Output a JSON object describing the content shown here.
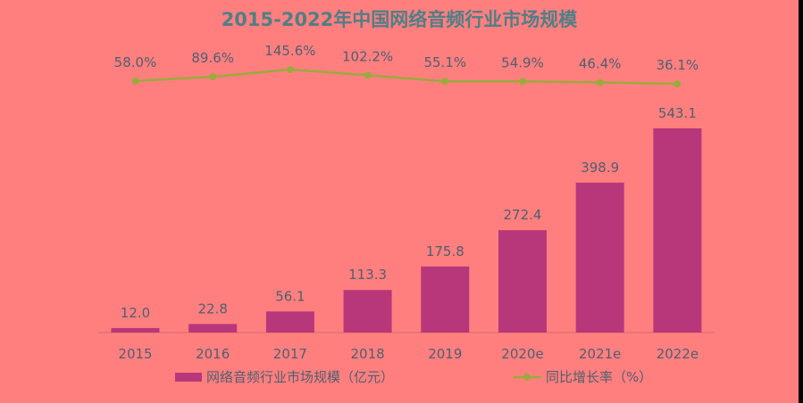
{
  "chart_data": {
    "type": "bar",
    "title": "2015-2022年中国网络音频行业市场规模",
    "categories": [
      "2015",
      "2016",
      "2017",
      "2018",
      "2019",
      "2020e",
      "2021e",
      "2022e"
    ],
    "series": [
      {
        "name": "网络音频行业市场规模（亿元）",
        "type": "bar",
        "values": [
          12.0,
          22.8,
          56.1,
          113.3,
          175.8,
          272.4,
          398.9,
          543.1
        ],
        "labels": [
          "12.0",
          "22.8",
          "56.1",
          "113.3",
          "175.8",
          "272.4",
          "398.9",
          "543.1"
        ],
        "axis": "left"
      },
      {
        "name": "同比增长率（%）",
        "type": "line",
        "values": [
          58.0,
          89.6,
          145.6,
          102.2,
          55.1,
          54.9,
          46.4,
          36.1
        ],
        "labels": [
          "58.0%",
          "89.6%",
          "145.6%",
          "102.2%",
          "55.1%",
          "54.9%",
          "46.4%",
          "36.1%"
        ],
        "axis": "right"
      }
    ],
    "ylim": [
      0,
      543.1
    ],
    "y2lim": [
      36.1,
      145.6
    ],
    "grid": false,
    "legend": "bottom",
    "colors": {
      "background": "#ff7f7f",
      "bar": "#b8377a",
      "line": "#9aaa3c",
      "title": "#4f7f86",
      "text": "#4f5f6f"
    }
  }
}
